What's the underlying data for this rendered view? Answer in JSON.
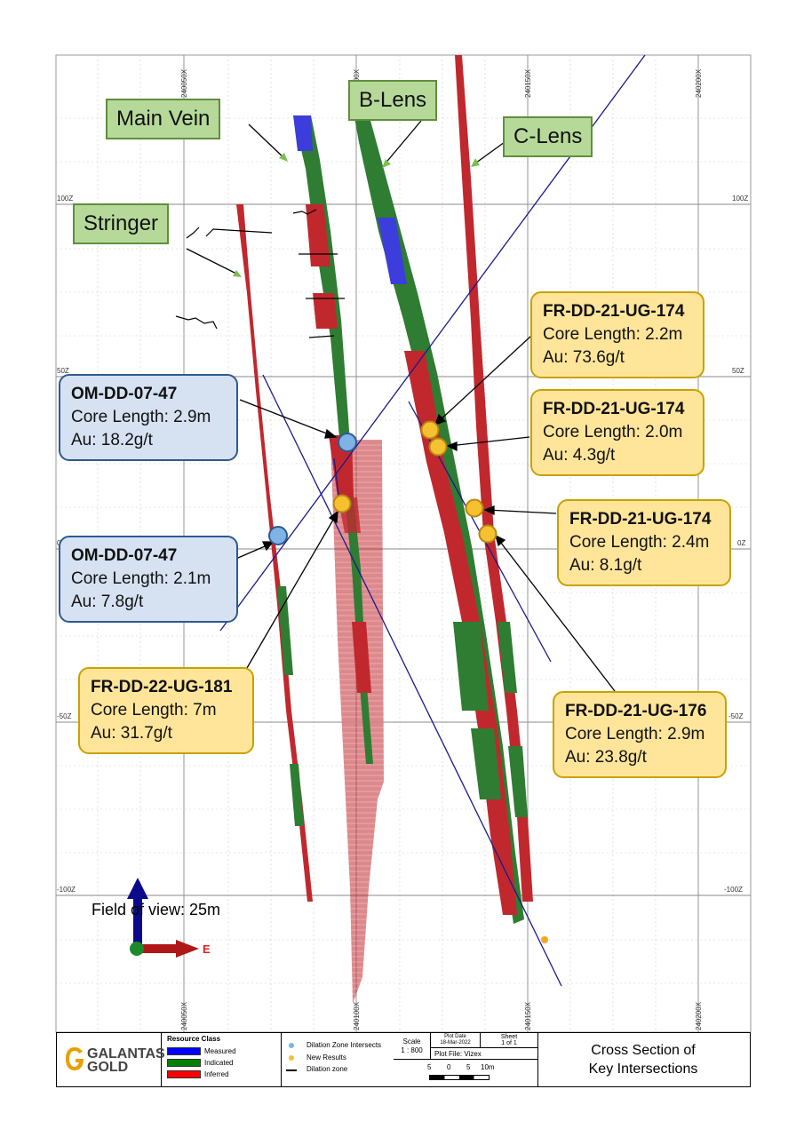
{
  "grid": {
    "x_labels": [
      "240050X",
      "240100X",
      "240150X",
      "240200X"
    ],
    "z_labels": [
      "100Z",
      "50Z",
      "0Z",
      "-50Z",
      "-100Z"
    ]
  },
  "lens_labels": {
    "main_vein": "Main Vein",
    "b_lens": "B-Lens",
    "c_lens": "C-Lens",
    "stringer": "Stringer"
  },
  "intersections": [
    {
      "hole": "FR-DD-21-UG-174",
      "core_length": "Core Length: 2.2m",
      "au": "Au: 73.6g/t"
    },
    {
      "hole": "FR-DD-21-UG-174",
      "core_length": "Core Length: 2.0m",
      "au": "Au: 4.3g/t"
    },
    {
      "hole": "FR-DD-21-UG-174",
      "core_length": "Core Length: 2.4m",
      "au": "Au: 8.1g/t"
    },
    {
      "hole": "FR-DD-21-UG-176",
      "core_length": "Core Length: 2.9m",
      "au": "Au: 23.8g/t"
    },
    {
      "hole": "FR-DD-22-UG-181",
      "core_length": "Core Length: 7m",
      "au": "Au: 31.7g/t"
    },
    {
      "hole": "OM-DD-07-47",
      "core_length": "Core Length: 2.9m",
      "au": "Au: 18.2g/t"
    },
    {
      "hole": "OM-DD-07-47",
      "core_length": "Core Length: 2.1m",
      "au": "Au: 7.8g/t"
    }
  ],
  "field_of_view": "Field of view: 25m",
  "axis_east_label": "E",
  "footer": {
    "logo_line1": "GALANTAS",
    "logo_line2": "GOLD",
    "resource_class_title": "Resource Class",
    "resource_classes": [
      {
        "label": "Measured",
        "color": "#0000ff"
      },
      {
        "label": "Indicated",
        "color": "#008000"
      },
      {
        "label": "Inferred",
        "color": "#ff0000"
      }
    ],
    "legend": {
      "dilation_intersects": "Dilation Zone Intersects",
      "new_results": "New Results",
      "dilation_zone": "Dilation zone"
    },
    "scale_label": "Scale",
    "scale_value": "1 : 800",
    "plot_date_label": "Plot Date",
    "plot_date_value": "18-Mar-2022",
    "sheet_label": "Sheet",
    "sheet_value": "1 of 1",
    "plot_file": "Plot File: Vizex",
    "scale_ticks": [
      "5",
      "0",
      "5",
      "10m"
    ],
    "title_line1": "Cross Section of",
    "title_line2": "Key Intersections"
  },
  "colors": {
    "measured": "#3d3ddb",
    "indicated": "#2e7d32",
    "inferred": "#c0282e",
    "new_result": "#f5c131",
    "dilation_intersect": "#7fb3e6",
    "drill_trace": "#1a1a8c"
  }
}
